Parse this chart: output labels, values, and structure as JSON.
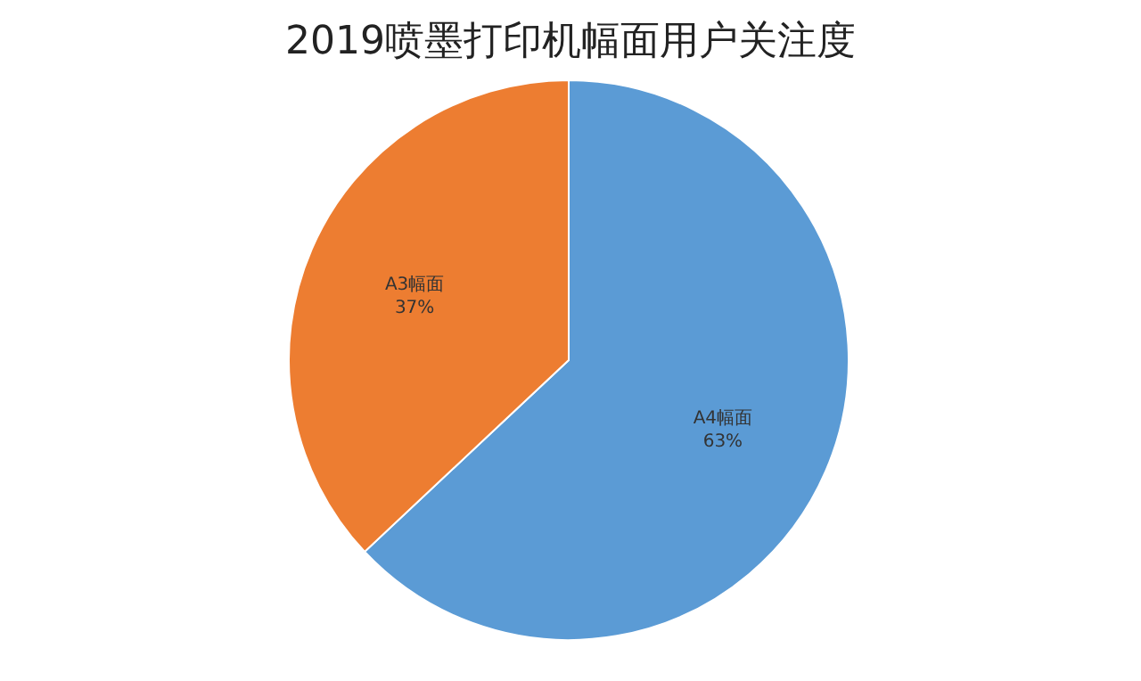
{
  "chart_data": {
    "type": "pie",
    "title": "2019喷墨打印机幅面用户关注度",
    "categories": [
      "A4幅面",
      "A3幅面"
    ],
    "values": [
      63,
      37
    ],
    "colors": [
      "#5b9bd5",
      "#ed7d31"
    ],
    "value_labels": [
      "63%",
      "37%"
    ],
    "legend": false
  }
}
